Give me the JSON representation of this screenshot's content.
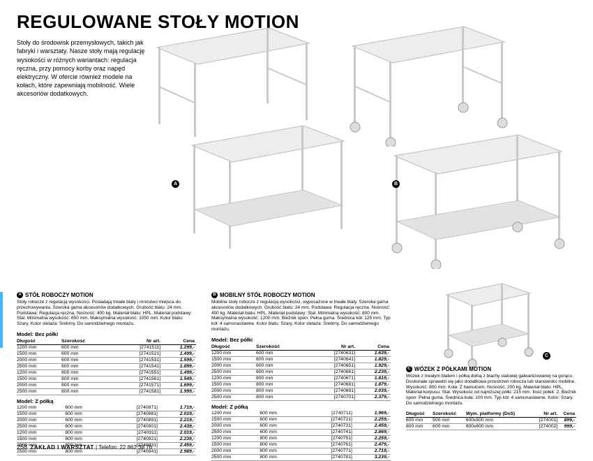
{
  "title": "REGULOWANE STOŁY MOTION",
  "intro": "Stoły do środowisk przemysłowych, takich jak fabryki i warsztaty. Nasze stoły mają regulację wysokości w różnych wariantach: regulacja ręczna, przy pomocy korby oraz napęd elektryczny. W ofercie również modele na kołach, które zapewniają mobilność. Wiele akcesoriów dodatkowych.",
  "colors": {
    "text": "#000000",
    "bg": "#ffffff",
    "table_top": "#e6e6e6",
    "table_frame": "#c9c9c9",
    "rule": "#999999",
    "accent": "#4fb3e8"
  },
  "markers": {
    "A": "A",
    "B": "B",
    "C": "C"
  },
  "sectionA": {
    "label": "STÓŁ ROBOCZY MOTION",
    "desc": "Stoły robocze z regulacją wysokości. Posiadają trwałe blaty i mnóstwo miejsca do przechowywania. Szeroka gama akcesoriów dodatkowych. Grubość blatu: 24 mm. Podstawa: Regulacja ręczna. Nośność: 400 kg. Materiał blatu: HPL. Materiał podstawy: Stal. Minimalna wysokość: 650 mm. Maksymalna wysokość: 1050 mm. Kolor blatu: Szary. Kolor stelaża: Srebrny. Do samodzielnego montażu.",
    "model1_label": "Model: Bez półki",
    "headers": {
      "dlugosc": "Długość",
      "szerokosc": "Szerokość",
      "nrart": "Nr art.",
      "cena": "Cena"
    },
    "model1": [
      [
        "1200 mm",
        "600 mm",
        "[2741511]",
        "1.299,-"
      ],
      [
        "1500 mm",
        "600 mm",
        "[2741521]",
        "1.499,-"
      ],
      [
        "2000 mm",
        "600 mm",
        "[2741531]",
        "1.599,-"
      ],
      [
        "2500 mm",
        "600 mm",
        "[2741541]",
        "1.899,-"
      ],
      [
        "1200 mm",
        "800 mm",
        "[2741551]",
        "1.499,-"
      ],
      [
        "1500 mm",
        "800 mm",
        "[2741561]",
        "1.549,-"
      ],
      [
        "2000 mm",
        "800 mm",
        "[2741571]",
        "1.699,-"
      ],
      [
        "2500 mm",
        "800 mm",
        "[2741581]",
        "1.999,-"
      ]
    ],
    "model2_label": "Model: Z półką",
    "model2": [
      [
        "1200 mm",
        "600 mm",
        "[2740871]",
        "1.719,-"
      ],
      [
        "1500 mm",
        "600 mm",
        "[2740881]",
        "2.019,-"
      ],
      [
        "2000 mm",
        "600 mm",
        "[2740891]",
        "2.219,-"
      ],
      [
        "2500 mm",
        "600 mm",
        "[2740901]",
        "2.439,-"
      ],
      [
        "1200 mm",
        "800 mm",
        "[2740911]",
        "2.019,-"
      ],
      [
        "1500 mm",
        "800 mm",
        "[2740921]",
        "2.239,-"
      ],
      [
        "2000 mm",
        "800 mm",
        "[2740931]",
        "2.459,-"
      ],
      [
        "2500 mm",
        "800 mm",
        "[2740941]",
        "2.989,-"
      ]
    ]
  },
  "sectionB": {
    "label": "MOBILNY STÓŁ ROBOCZY MOTION",
    "desc": "Mobilne stoły robocze z regulacją wysokości, wyposażone w trwałe blaty. Szeroka gama akcesoriów dodatkowych. Grubość blatu: 24 mm. Podstawa: Regulacja ręczna. Nośność: 400 kg. Materiał blatu: HPL. Materiał podstawy: Stal. Minimalna wysokość: 800 mm. Maksymalna wysokość: 1200 mm. Bieżnik opon: Pełna guma. Średnica kół: 125 mm. Typ kół: 4 samonastawne. Kolor blatu: Szary. Kolor stelaża: Srebrny. Do samodzielnego montażu.",
    "model1_label": "Model: Bez półki",
    "headers": {
      "dlugosc": "Długość",
      "szerokosc": "Szerokość",
      "nrart": "Nr art.",
      "cena": "Cena"
    },
    "model1": [
      [
        "1200 mm",
        "600 mm",
        "[2740631]",
        "1.639,-"
      ],
      [
        "1500 mm",
        "600 mm",
        "[2740641]",
        "1.829,-"
      ],
      [
        "2000 mm",
        "600 mm",
        "[2740651]",
        "1.929,-"
      ],
      [
        "2500 mm",
        "600 mm",
        "[2740661]",
        "2.239,-"
      ],
      [
        "1200 mm",
        "800 mm",
        "[2740671]",
        "1.819,-"
      ],
      [
        "1500 mm",
        "800 mm",
        "[2740681]",
        "1.879,-"
      ],
      [
        "2000 mm",
        "800 mm",
        "[2740691]",
        "2.039,-"
      ],
      [
        "2500 mm",
        "800 mm",
        "[2740701]",
        "2.379,-"
      ]
    ],
    "model2_label": "Model: Z półką",
    "model2": [
      [
        "1200 mm",
        "600 mm",
        "[2740711]",
        "1.969,-"
      ],
      [
        "1500 mm",
        "600 mm",
        "[2740721]",
        "2.259,-"
      ],
      [
        "2000 mm",
        "600 mm",
        "[2740731]",
        "2.459,-"
      ],
      [
        "2500 mm",
        "600 mm",
        "[2740741]",
        "2.869,-"
      ],
      [
        "1200 mm",
        "800 mm",
        "[2740751]",
        "2.259,-"
      ],
      [
        "1500 mm",
        "800 mm",
        "[2740761]",
        "2.479,-"
      ],
      [
        "2000 mm",
        "800 mm",
        "[2740771]",
        "2.719,-"
      ],
      [
        "2500 mm",
        "800 mm",
        "[2740781]",
        "3.239,-"
      ]
    ]
  },
  "sectionC": {
    "label": "WÓZEK Z PÓŁKAMI MOTION",
    "desc": "Wózek z trwałym blatem i półką dolną z blachy stalowej galwanizowanej na gorąco. Doskonale sprawdzi się jako dodatkowa przestrzeń robocza lub stanowisko mobilne. Wysokość: 800 mm. Koła: Z hamulcem. Nośność: 200 kg. Materiał blatu: HPL. Materiał korpusu: Stal. Wysokość od najniższej półki: 215 mm. Ilość półek: 2. Bieżnik opon: Pełna guma. Średnica koła: 100 mm. Typ kół: 4 samonastawne. Kolor: Szary. Do samodzielnego montażu.",
    "headers": {
      "dlugosc": "Długość",
      "szerokosc": "Szerokość",
      "wym": "Wym. platformy (DxS)",
      "nrart": "Nr art.",
      "cena": "Cena"
    },
    "rows": [
      [
        "600 mm",
        "500 mm",
        "600x500 mm",
        "[274001]",
        "899,-"
      ],
      [
        "800 mm",
        "600 mm",
        "800x600 mm",
        "[274002]",
        "999,-"
      ]
    ]
  },
  "footer": {
    "page": "258",
    "section": "ZAKŁAD I WARSZTAT",
    "phone_label": "Telefon:",
    "phone": "22 862 38 76"
  }
}
